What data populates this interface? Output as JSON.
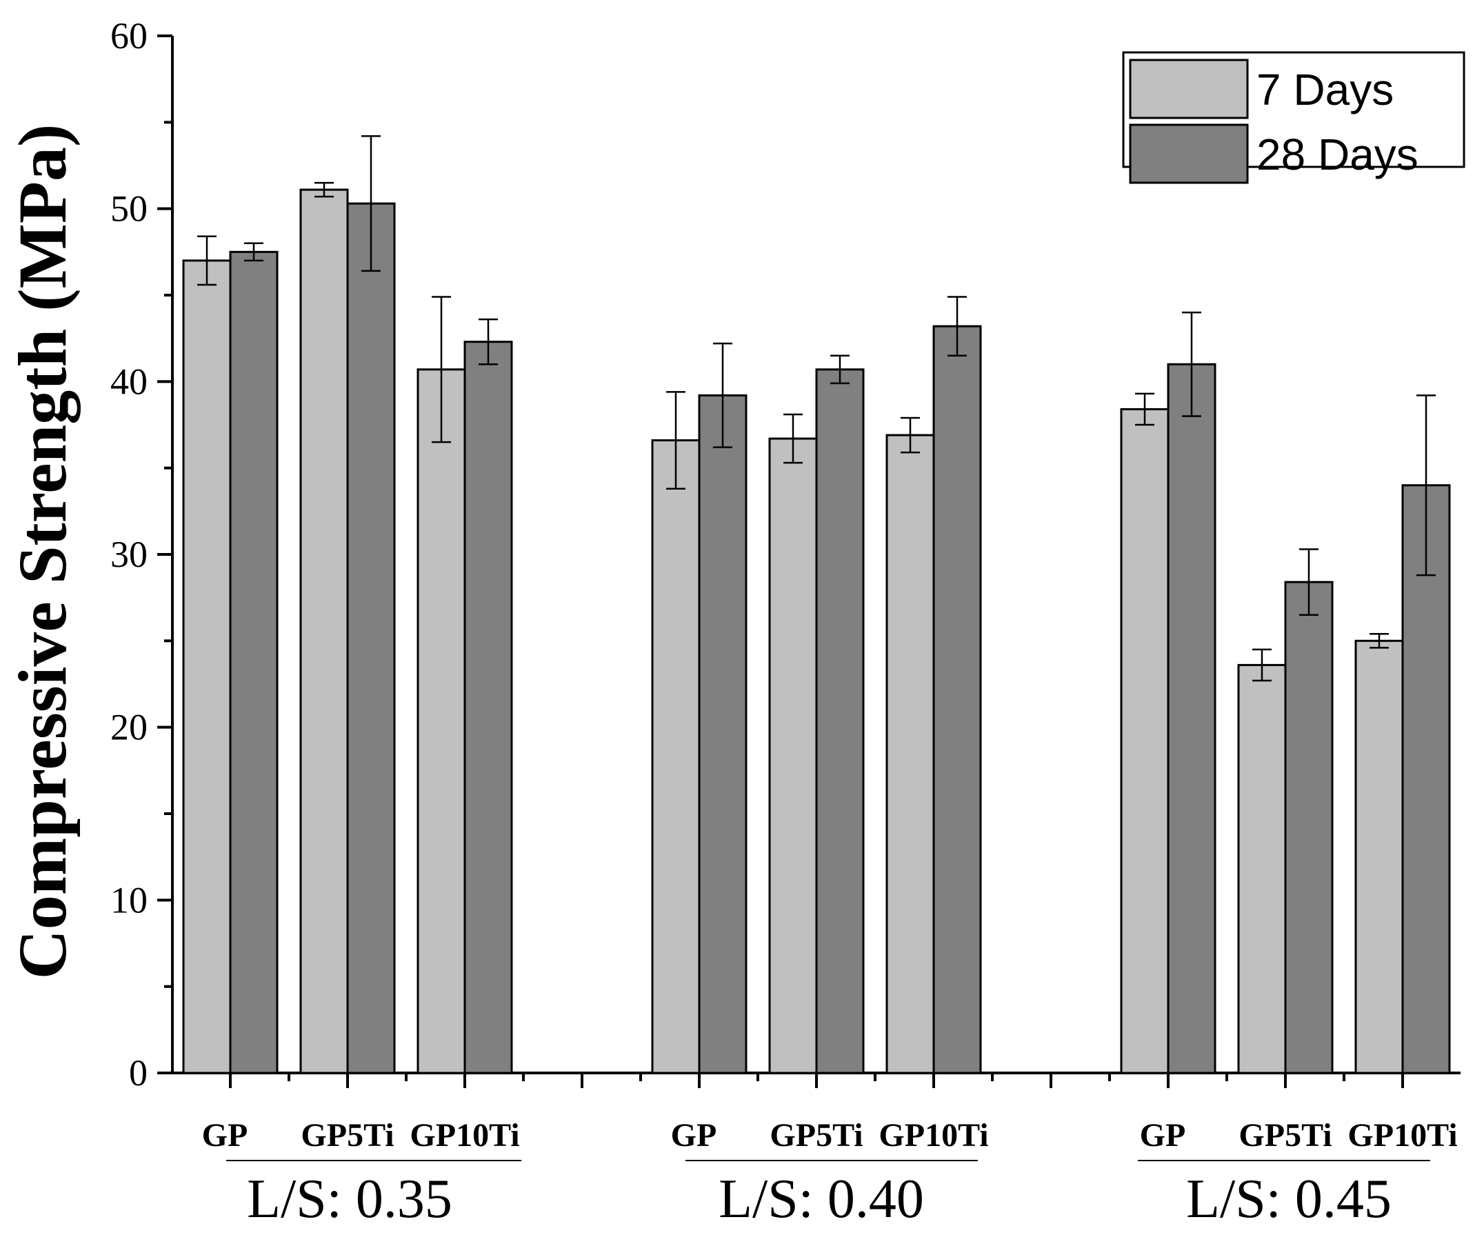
{
  "chart_data": {
    "type": "bar",
    "title": "",
    "xlabel": "",
    "ylabel": "Compressive Strength (MPa)",
    "ylim": [
      0,
      60
    ],
    "yticks": [
      0,
      10,
      20,
      30,
      40,
      50,
      60
    ],
    "groups": [
      {
        "label": "L/S: 0.35",
        "categories": [
          "GP",
          "GP5Ti",
          "GP10Ti"
        ]
      },
      {
        "label": "L/S: 0.40",
        "categories": [
          "GP",
          "GP5Ti",
          "GP10Ti"
        ]
      },
      {
        "label": "L/S: 0.45",
        "categories": [
          "GP",
          "GP5Ti",
          "GP10Ti"
        ]
      }
    ],
    "series": [
      {
        "name": "7 Days",
        "color": "#c0c0c0",
        "values": [
          47.0,
          51.1,
          40.7,
          36.6,
          36.7,
          36.9,
          38.4,
          23.6,
          25.0
        ],
        "errors": [
          1.4,
          0.4,
          4.2,
          2.8,
          1.4,
          1.0,
          0.9,
          0.9,
          0.4
        ]
      },
      {
        "name": "28 Days",
        "color": "#808080",
        "values": [
          47.5,
          50.3,
          42.3,
          39.2,
          40.7,
          43.2,
          41.0,
          28.4,
          34.0
        ],
        "errors": [
          0.5,
          3.9,
          1.3,
          3.0,
          0.8,
          1.7,
          3.0,
          1.9,
          5.2
        ]
      }
    ],
    "legend": {
      "position": "top-right",
      "entries": [
        "7 Days",
        "28 Days"
      ]
    },
    "grid": false
  }
}
